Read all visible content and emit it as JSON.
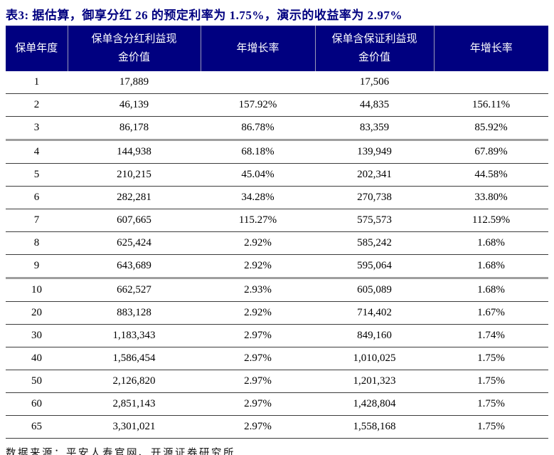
{
  "title": "表3: 据估算，御享分红 26 的预定利率为 1.75%，演示的收益率为 2.97%",
  "table": {
    "headers": [
      "保单年度",
      "保单含分红利益现金价值",
      "年增长率",
      "保单含保证利益现金价值",
      "年增长率"
    ],
    "rows": [
      [
        "1",
        "17,889",
        "",
        "17,506",
        ""
      ],
      [
        "2",
        "46,139",
        "157.92%",
        "44,835",
        "156.11%"
      ],
      [
        "3",
        "86,178",
        "86.78%",
        "83,359",
        "85.92%"
      ],
      [
        "4",
        "144,938",
        "68.18%",
        "139,949",
        "67.89%"
      ],
      [
        "5",
        "210,215",
        "45.04%",
        "202,341",
        "44.58%"
      ],
      [
        "6",
        "282,281",
        "34.28%",
        "270,738",
        "33.80%"
      ],
      [
        "7",
        "607,665",
        "115.27%",
        "575,573",
        "112.59%"
      ],
      [
        "8",
        "625,424",
        "2.92%",
        "585,242",
        "1.68%"
      ],
      [
        "9",
        "643,689",
        "2.92%",
        "595,064",
        "1.68%"
      ],
      [
        "10",
        "662,527",
        "2.93%",
        "605,089",
        "1.68%"
      ],
      [
        "20",
        "883,128",
        "2.92%",
        "714,402",
        "1.67%"
      ],
      [
        "30",
        "1,183,343",
        "2.97%",
        "849,160",
        "1.74%"
      ],
      [
        "40",
        "1,586,454",
        "2.97%",
        "1,010,025",
        "1.75%"
      ],
      [
        "50",
        "2,126,820",
        "2.97%",
        "1,201,323",
        "1.75%"
      ],
      [
        "60",
        "2,851,143",
        "2.97%",
        "1,428,804",
        "1.75%"
      ],
      [
        "65",
        "3,301,021",
        "2.97%",
        "1,558,168",
        "1.75%"
      ]
    ],
    "thick_divider_after_years": [
      "3",
      "9"
    ]
  },
  "source": "数据来源：平安人寿官网、开源证券研究所",
  "colors": {
    "header_bg": "#000080",
    "header_text": "#ffffff",
    "title_text": "#000080",
    "body_text": "#000000",
    "row_line": "#3c3c3c",
    "thick_line": "#9e9e9e",
    "header_divider": "#9a9ab8"
  }
}
